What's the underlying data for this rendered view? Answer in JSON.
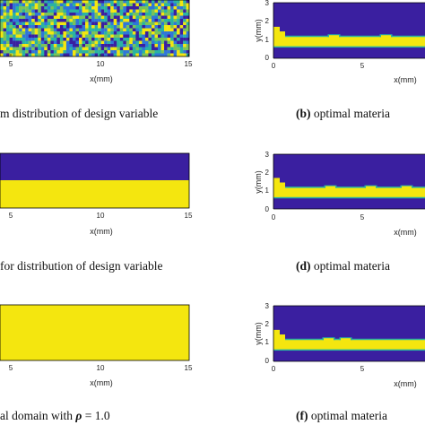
{
  "colors": {
    "low": "#3a1fa0",
    "high": "#f4e60f",
    "mid_teal": "#2ab3a2",
    "mid_blue": "#2f76d8",
    "mid_green": "#78c35a"
  },
  "left_panels": {
    "xticks": [
      "5",
      "10",
      "15"
    ],
    "xlabel": "x(mm)"
  },
  "right_panels": {
    "yticks": [
      "0",
      "1",
      "2",
      "3"
    ],
    "ylabel": "y(mm)",
    "xticks": [
      "0",
      "5"
    ],
    "xlabel": "x(mm)"
  },
  "captions": {
    "a": {
      "text": "m distribution of design variable"
    },
    "b": {
      "label": "(b)",
      "text": " optimal materia"
    },
    "c": {
      "text": "for distribution of design variable"
    },
    "d": {
      "label": "(d)",
      "text": " optimal materia"
    },
    "e": {
      "text": "al domain with ",
      "symbol": "ρ",
      "tail": " = 1.0"
    },
    "f": {
      "label": "(f)",
      "text": " optimal materia"
    }
  },
  "chart_data": [
    {
      "type": "heatmap",
      "panel": "a",
      "description_values": "random field of design variable in [0,1]",
      "xlim": [
        0,
        15
      ]
    },
    {
      "type": "heatmap",
      "panel": "b",
      "ylim": [
        0,
        3
      ],
      "band_y": [
        0.6,
        1.2
      ],
      "xlim": [
        0,
        8
      ]
    },
    {
      "type": "heatmap",
      "panel": "c",
      "xlim": [
        0,
        15
      ],
      "split": "upper half 0, lower half 1"
    },
    {
      "type": "heatmap",
      "panel": "d",
      "ylim": [
        0,
        3
      ],
      "band_y": [
        0.6,
        1.0
      ],
      "xlim": [
        0,
        8
      ]
    },
    {
      "type": "heatmap",
      "panel": "e",
      "xlim": [
        0,
        15
      ],
      "value": 1.0
    },
    {
      "type": "heatmap",
      "panel": "f",
      "ylim": [
        0,
        3
      ],
      "band_y": [
        0.6,
        1.0
      ],
      "xlim": [
        0,
        8
      ]
    }
  ]
}
